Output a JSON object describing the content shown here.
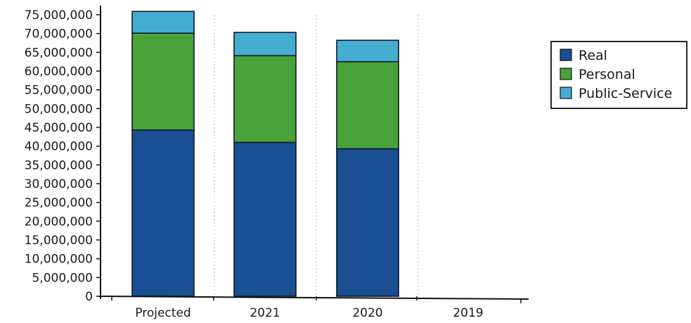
{
  "chart_data": {
    "type": "bar",
    "stacked": true,
    "title": "",
    "xlabel": "",
    "ylabel": "",
    "categories": [
      "Projected",
      "2021",
      "2020",
      "2019"
    ],
    "series": [
      {
        "name": "Real",
        "color": "#1a4f94",
        "values": [
          44300000,
          41000000,
          39300000,
          null
        ]
      },
      {
        "name": "Personal",
        "color": "#4aa23a",
        "values": [
          25800000,
          23100000,
          23200000,
          null
        ]
      },
      {
        "name": "Public-Service",
        "color": "#45aed0",
        "values": [
          5800000,
          6200000,
          5700000,
          null
        ]
      }
    ],
    "ylim": [
      0,
      75000000
    ],
    "ytick_step": 5000000,
    "yticks": [
      "0",
      "5,000,000",
      "10,000,000",
      "15,000,000",
      "20,000,000",
      "25,000,000",
      "30,000,000",
      "35,000,000",
      "40,000,000",
      "45,000,000",
      "50,000,000",
      "55,000,000",
      "60,000,000",
      "65,000,000",
      "70,000,000",
      "75,000,000"
    ],
    "grid": "vertical dotted lines between categories",
    "legend": {
      "position": "right",
      "entries": [
        "Real",
        "Personal",
        "Public-Service"
      ]
    }
  }
}
